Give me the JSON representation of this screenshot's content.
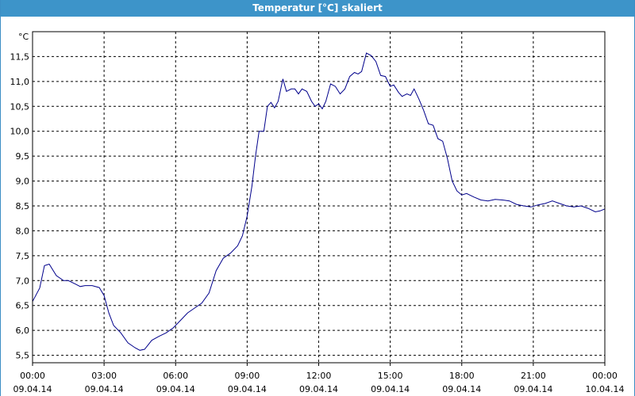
{
  "window": {
    "title": "Temperatur [°C] skaliert"
  },
  "chart_data": {
    "type": "line",
    "title": "Temperatur [°C] skaliert",
    "unit_label": "°C",
    "ylim": [
      5.35,
      12.0
    ],
    "xlim": [
      0,
      24
    ],
    "grid": true,
    "grid_style": "dashed",
    "line_color": "#00008b",
    "y_ticks": [
      {
        "v": 5.5,
        "label": "5,5"
      },
      {
        "v": 6.0,
        "label": "6,0"
      },
      {
        "v": 6.5,
        "label": "6,5"
      },
      {
        "v": 7.0,
        "label": "7,0"
      },
      {
        "v": 7.5,
        "label": "7,5"
      },
      {
        "v": 8.0,
        "label": "8,0"
      },
      {
        "v": 8.5,
        "label": "8,5"
      },
      {
        "v": 9.0,
        "label": "9,0"
      },
      {
        "v": 9.5,
        "label": "9,5"
      },
      {
        "v": 10.0,
        "label": "10,0"
      },
      {
        "v": 10.5,
        "label": "10,5"
      },
      {
        "v": 11.0,
        "label": "11,0"
      },
      {
        "v": 11.5,
        "label": "11,5"
      }
    ],
    "x_ticks": [
      {
        "h": 0,
        "time": "00:00",
        "date": "09.04.14"
      },
      {
        "h": 3,
        "time": "03:00",
        "date": "09.04.14"
      },
      {
        "h": 6,
        "time": "06:00",
        "date": "09.04.14"
      },
      {
        "h": 9,
        "time": "09:00",
        "date": "09.04.14"
      },
      {
        "h": 12,
        "time": "12:00",
        "date": "09.04.14"
      },
      {
        "h": 15,
        "time": "15:00",
        "date": "09.04.14"
      },
      {
        "h": 18,
        "time": "18:00",
        "date": "09.04.14"
      },
      {
        "h": 21,
        "time": "21:00",
        "date": "09.04.14"
      },
      {
        "h": 24,
        "time": "00:00",
        "date": "10.04.14"
      }
    ],
    "series": [
      {
        "points": [
          [
            0.0,
            6.58
          ],
          [
            0.3,
            6.85
          ],
          [
            0.5,
            7.3
          ],
          [
            0.7,
            7.33
          ],
          [
            1.0,
            7.1
          ],
          [
            1.3,
            7.0
          ],
          [
            1.5,
            7.0
          ],
          [
            1.8,
            6.93
          ],
          [
            2.0,
            6.88
          ],
          [
            2.2,
            6.9
          ],
          [
            2.5,
            6.9
          ],
          [
            2.8,
            6.86
          ],
          [
            3.0,
            6.7
          ],
          [
            3.2,
            6.35
          ],
          [
            3.4,
            6.1
          ],
          [
            3.7,
            5.95
          ],
          [
            4.0,
            5.75
          ],
          [
            4.3,
            5.65
          ],
          [
            4.5,
            5.6
          ],
          [
            4.7,
            5.62
          ],
          [
            5.0,
            5.8
          ],
          [
            5.3,
            5.88
          ],
          [
            5.6,
            5.95
          ],
          [
            5.9,
            6.05
          ],
          [
            6.2,
            6.2
          ],
          [
            6.5,
            6.35
          ],
          [
            6.8,
            6.45
          ],
          [
            7.1,
            6.55
          ],
          [
            7.4,
            6.75
          ],
          [
            7.7,
            7.2
          ],
          [
            8.0,
            7.45
          ],
          [
            8.3,
            7.55
          ],
          [
            8.6,
            7.7
          ],
          [
            8.8,
            7.9
          ],
          [
            9.0,
            8.3
          ],
          [
            9.2,
            8.9
          ],
          [
            9.35,
            9.5
          ],
          [
            9.5,
            10.0
          ],
          [
            9.7,
            10.0
          ],
          [
            9.85,
            10.5
          ],
          [
            10.0,
            10.58
          ],
          [
            10.15,
            10.47
          ],
          [
            10.3,
            10.6
          ],
          [
            10.5,
            11.05
          ],
          [
            10.65,
            10.8
          ],
          [
            10.85,
            10.85
          ],
          [
            11.0,
            10.85
          ],
          [
            11.15,
            10.75
          ],
          [
            11.3,
            10.85
          ],
          [
            11.5,
            10.8
          ],
          [
            11.7,
            10.6
          ],
          [
            11.85,
            10.5
          ],
          [
            12.0,
            10.55
          ],
          [
            12.15,
            10.45
          ],
          [
            12.3,
            10.6
          ],
          [
            12.5,
            10.95
          ],
          [
            12.7,
            10.9
          ],
          [
            12.9,
            10.75
          ],
          [
            13.1,
            10.85
          ],
          [
            13.3,
            11.1
          ],
          [
            13.5,
            11.18
          ],
          [
            13.65,
            11.15
          ],
          [
            13.8,
            11.2
          ],
          [
            14.0,
            11.57
          ],
          [
            14.2,
            11.52
          ],
          [
            14.4,
            11.4
          ],
          [
            14.6,
            11.12
          ],
          [
            14.8,
            11.1
          ],
          [
            15.0,
            10.9
          ],
          [
            15.15,
            10.93
          ],
          [
            15.35,
            10.78
          ],
          [
            15.5,
            10.7
          ],
          [
            15.7,
            10.75
          ],
          [
            15.85,
            10.72
          ],
          [
            16.0,
            10.85
          ],
          [
            16.2,
            10.65
          ],
          [
            16.4,
            10.42
          ],
          [
            16.6,
            10.15
          ],
          [
            16.8,
            10.12
          ],
          [
            17.0,
            9.85
          ],
          [
            17.2,
            9.8
          ],
          [
            17.4,
            9.45
          ],
          [
            17.6,
            9.0
          ],
          [
            17.8,
            8.8
          ],
          [
            18.0,
            8.72
          ],
          [
            18.2,
            8.75
          ],
          [
            18.5,
            8.68
          ],
          [
            18.8,
            8.62
          ],
          [
            19.1,
            8.6
          ],
          [
            19.4,
            8.63
          ],
          [
            19.7,
            8.62
          ],
          [
            20.0,
            8.6
          ],
          [
            20.3,
            8.53
          ],
          [
            20.6,
            8.5
          ],
          [
            20.9,
            8.48
          ],
          [
            21.2,
            8.52
          ],
          [
            21.5,
            8.55
          ],
          [
            21.8,
            8.6
          ],
          [
            22.1,
            8.55
          ],
          [
            22.4,
            8.5
          ],
          [
            22.7,
            8.48
          ],
          [
            23.0,
            8.5
          ],
          [
            23.3,
            8.45
          ],
          [
            23.6,
            8.38
          ],
          [
            23.8,
            8.4
          ],
          [
            24.0,
            8.44
          ]
        ]
      }
    ]
  }
}
